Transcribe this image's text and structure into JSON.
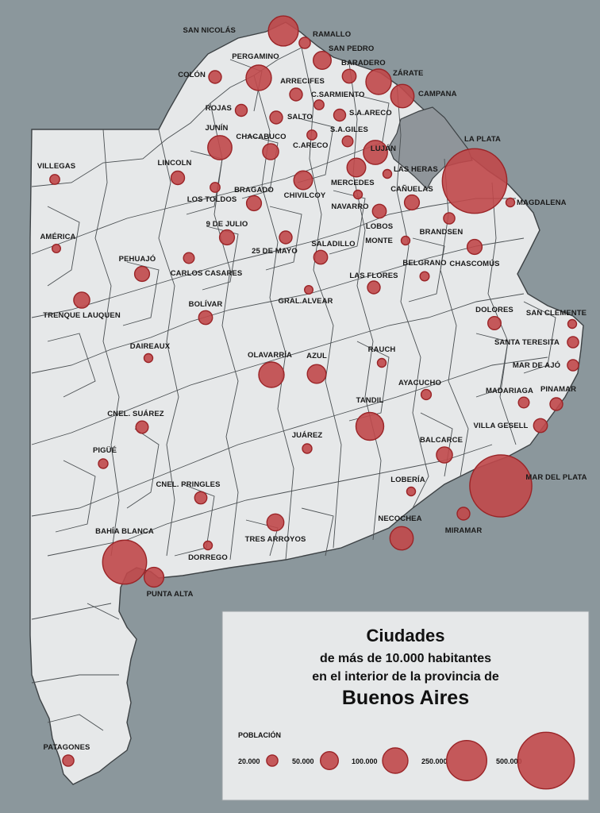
{
  "colors": {
    "sea": "#8b979c",
    "land": "#e6e8e9",
    "border": "#4a4f52",
    "gba": "#8f959a",
    "circle_fill": "#c0484a",
    "circle_stroke": "#9a2427"
  },
  "legend": {
    "line1": "Ciudades",
    "line2": "de más de 10.000 habitantes",
    "line3": "en el interior de la provincia de",
    "line4": "Buenos Aires",
    "population_label": "POBLACIÓN",
    "sizes": [
      {
        "label": "20.000",
        "population": 20000
      },
      {
        "label": "50.000",
        "population": 50000
      },
      {
        "label": "100.000",
        "population": 100000
      },
      {
        "label": "250.000",
        "population": 250000
      },
      {
        "label": "500.000",
        "population": 500000
      }
    ]
  },
  "cities": [
    {
      "name": "SAN NICOLÁS",
      "population": 140000
    },
    {
      "name": "RAMALLO",
      "population": 20000
    },
    {
      "name": "SAN PEDRO",
      "population": 50000
    },
    {
      "name": "PERGAMINO",
      "population": 100000
    },
    {
      "name": "BARADERO",
      "population": 30000
    },
    {
      "name": "ZÁRATE",
      "population": 100000
    },
    {
      "name": "COLÓN",
      "population": 25000
    },
    {
      "name": "CAMPANA",
      "population": 85000
    },
    {
      "name": "ARRECIFES",
      "population": 25000
    },
    {
      "name": "C.SARMIENTO",
      "population": 15000
    },
    {
      "name": "ROJAS",
      "population": 22000
    },
    {
      "name": "SALTO",
      "population": 25000
    },
    {
      "name": "S.A.ARECO",
      "population": 22000
    },
    {
      "name": "JUNÍN",
      "population": 90000
    },
    {
      "name": "S.A.GILES",
      "population": 18000
    },
    {
      "name": "CHACABUCO",
      "population": 40000
    },
    {
      "name": "C.ARECO",
      "population": 15000
    },
    {
      "name": "LUJÁN",
      "population": 90000
    },
    {
      "name": "LA PLATA",
      "population": 650000
    },
    {
      "name": "VILLEGAS",
      "population": 15000
    },
    {
      "name": "LINCOLN",
      "population": 28000
    },
    {
      "name": "LAS HERAS",
      "population": 12000
    },
    {
      "name": "MERCEDES",
      "population": 55000
    },
    {
      "name": "CHIVILCOY",
      "population": 55000
    },
    {
      "name": "LOS TOLDOS",
      "population": 15000
    },
    {
      "name": "BRAGADO",
      "population": 35000
    },
    {
      "name": "NAVARRO",
      "population": 12000
    },
    {
      "name": "CAÑUELAS",
      "population": 35000
    },
    {
      "name": "MAGDALENA",
      "population": 12000
    },
    {
      "name": "LOBOS",
      "population": 30000
    },
    {
      "name": "BRANDSEN",
      "population": 20000
    },
    {
      "name": "AMÉRICA",
      "population": 11000
    },
    {
      "name": "9 DE JULIO",
      "population": 35000
    },
    {
      "name": "25 DE MAYO",
      "population": 25000
    },
    {
      "name": "MONTE",
      "population": 12000
    },
    {
      "name": "PEHUAJÓ",
      "population": 35000
    },
    {
      "name": "SALADILLO",
      "population": 30000
    },
    {
      "name": "CHASCOMÚS",
      "population": 35000
    },
    {
      "name": "CARLOS CASARES",
      "population": 18000
    },
    {
      "name": "BELGRANO",
      "population": 13000
    },
    {
      "name": "LAS FLORES",
      "population": 25000
    },
    {
      "name": "TRENQUE LAUQUEN",
      "population": 40000
    },
    {
      "name": "GRAL.ALVEAR",
      "population": 11000
    },
    {
      "name": "BOLÍVAR",
      "population": 30000
    },
    {
      "name": "DOLORES",
      "population": 27000
    },
    {
      "name": "SAN CLEMENTE",
      "population": 12000
    },
    {
      "name": "DAIREAUX",
      "population": 12000
    },
    {
      "name": "SANTA TERESITA",
      "population": 20000
    },
    {
      "name": "OLAVARRÍA",
      "population": 100000
    },
    {
      "name": "AZUL",
      "population": 55000
    },
    {
      "name": "RAUCH",
      "population": 12000
    },
    {
      "name": "MAR DE AJÓ",
      "population": 20000
    },
    {
      "name": "AYACUCHO",
      "population": 16000
    },
    {
      "name": "MADARIAGA",
      "population": 18000
    },
    {
      "name": "PINAMAR",
      "population": 25000
    },
    {
      "name": "CNEL. SUÁREZ",
      "population": 24000
    },
    {
      "name": "TANDIL",
      "population": 120000
    },
    {
      "name": "VILLA GESELL",
      "population": 30000
    },
    {
      "name": "JUÁREZ",
      "population": 14000
    },
    {
      "name": "PIGÜÉ",
      "population": 14000
    },
    {
      "name": "BALCARCE",
      "population": 40000
    },
    {
      "name": "MAR DEL PLATA",
      "population": 600000
    },
    {
      "name": "LOBERÍA",
      "population": 12000
    },
    {
      "name": "CNEL. PRINGLES",
      "population": 23000
    },
    {
      "name": "NECOCHEA",
      "population": 85000
    },
    {
      "name": "MIRAMAR",
      "population": 25000
    },
    {
      "name": "BAHÍA BLANCA",
      "population": 300000
    },
    {
      "name": "TRES ARROYOS",
      "population": 45000
    },
    {
      "name": "DORREGO",
      "population": 12000
    },
    {
      "name": "PUNTA ALTA",
      "population": 60000
    },
    {
      "name": "PATAGONES",
      "population": 20000
    }
  ]
}
